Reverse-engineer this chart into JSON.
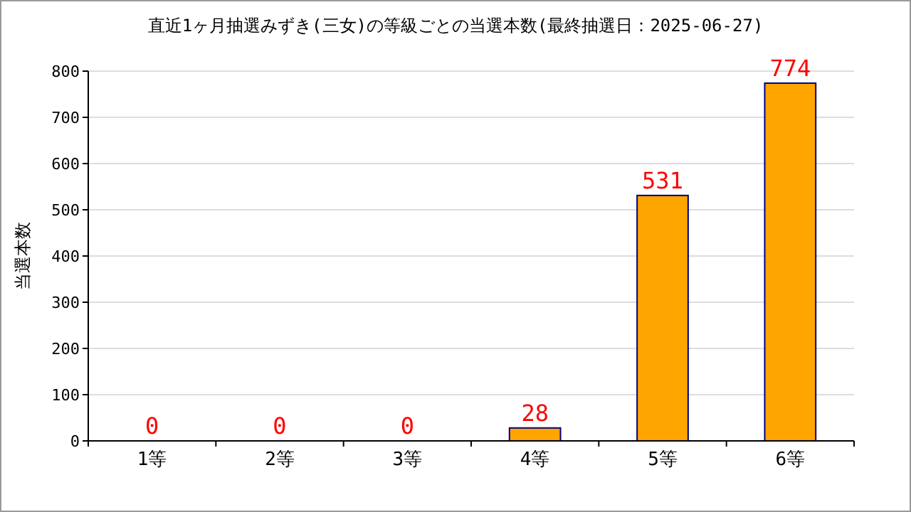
{
  "chart_data": {
    "type": "bar",
    "title": "直近1ヶ月抽選みずき(三女)の等級ごとの当選本数(最終抽選日：2025-06-27)",
    "ylabel": "当選本数",
    "categories": [
      "1等",
      "2等",
      "3等",
      "4等",
      "5等",
      "6等"
    ],
    "values": [
      0,
      0,
      0,
      28,
      531,
      774
    ],
    "color": "#ffa500",
    "ylim": [
      0,
      800
    ],
    "yticks": [
      0,
      100,
      200,
      300,
      400,
      500,
      600,
      700,
      800
    ],
    "grid": "y",
    "data_labels": true
  }
}
